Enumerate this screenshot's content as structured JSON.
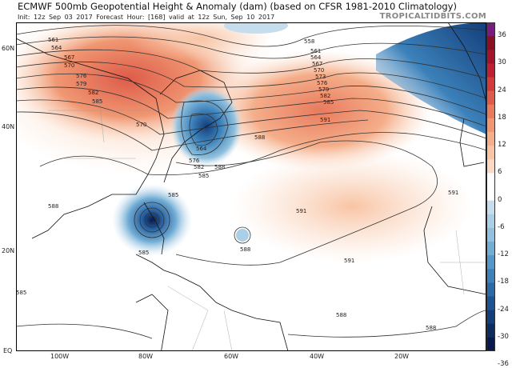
{
  "header": {
    "title": "ECMWF 500mb Geopotential Height & Anomaly (dam) (based on CFSR 1981-2010 Climatology)",
    "init": "Init: 12z Sep 03 2017",
    "forecast_hour": "Forecast Hour: [168]",
    "valid": "valid at 12z Sun, Sep 10 2017",
    "brand": "TROPICALTIDBITS.COM"
  },
  "axes": {
    "lat_labels": [
      "60N",
      "40N",
      "20N",
      "EQ"
    ],
    "lon_labels": [
      "100W",
      "80W",
      "60W",
      "40W",
      "20W"
    ]
  },
  "colorbar": {
    "labels": [
      "36",
      "30",
      "24",
      "18",
      "12",
      "6",
      "0",
      "-6",
      "-12",
      "-18",
      "-24",
      "-30",
      "-36"
    ],
    "colors": [
      "#7a1b80",
      "#8a0f22",
      "#a3142a",
      "#bf1f30",
      "#d33b3b",
      "#de5b49",
      "#e87b5e",
      "#f09772",
      "#f5ae8a",
      "#f8c4a4",
      "#fbd9c3",
      "#ffffff",
      "#ffffff",
      "#c6ddee",
      "#aacfe6",
      "#91c1de",
      "#71add5",
      "#5398c8",
      "#3c81ba",
      "#2b69a9",
      "#1d5395",
      "#133e7b",
      "#0c2b5f",
      "#081a4d"
    ]
  },
  "contour_labels": [
    "558",
    "561",
    "564",
    "567",
    "570",
    "573",
    "576",
    "579",
    "582",
    "585",
    "588",
    "591"
  ],
  "map_labels": [
    {
      "text": "561"
    },
    {
      "text": "564"
    },
    {
      "text": "567"
    },
    {
      "text": "570"
    },
    {
      "text": "576"
    },
    {
      "text": "579"
    },
    {
      "text": "582"
    },
    {
      "text": "585"
    },
    {
      "text": "558"
    },
    {
      "text": "561"
    },
    {
      "text": "564"
    },
    {
      "text": "567"
    },
    {
      "text": "570"
    },
    {
      "text": "573"
    },
    {
      "text": "576"
    },
    {
      "text": "579"
    },
    {
      "text": "582"
    },
    {
      "text": "585"
    },
    {
      "text": "591"
    },
    {
      "text": "588"
    },
    {
      "text": "588"
    },
    {
      "text": "585"
    },
    {
      "text": "582"
    },
    {
      "text": "576"
    },
    {
      "text": "570"
    },
    {
      "text": "564"
    },
    {
      "text": "585"
    },
    {
      "text": "588"
    },
    {
      "text": "591"
    },
    {
      "text": "591"
    },
    {
      "text": "591"
    },
    {
      "text": "588"
    },
    {
      "text": "585"
    },
    {
      "text": "588"
    },
    {
      "text": "588"
    },
    {
      "text": "585"
    }
  ]
}
